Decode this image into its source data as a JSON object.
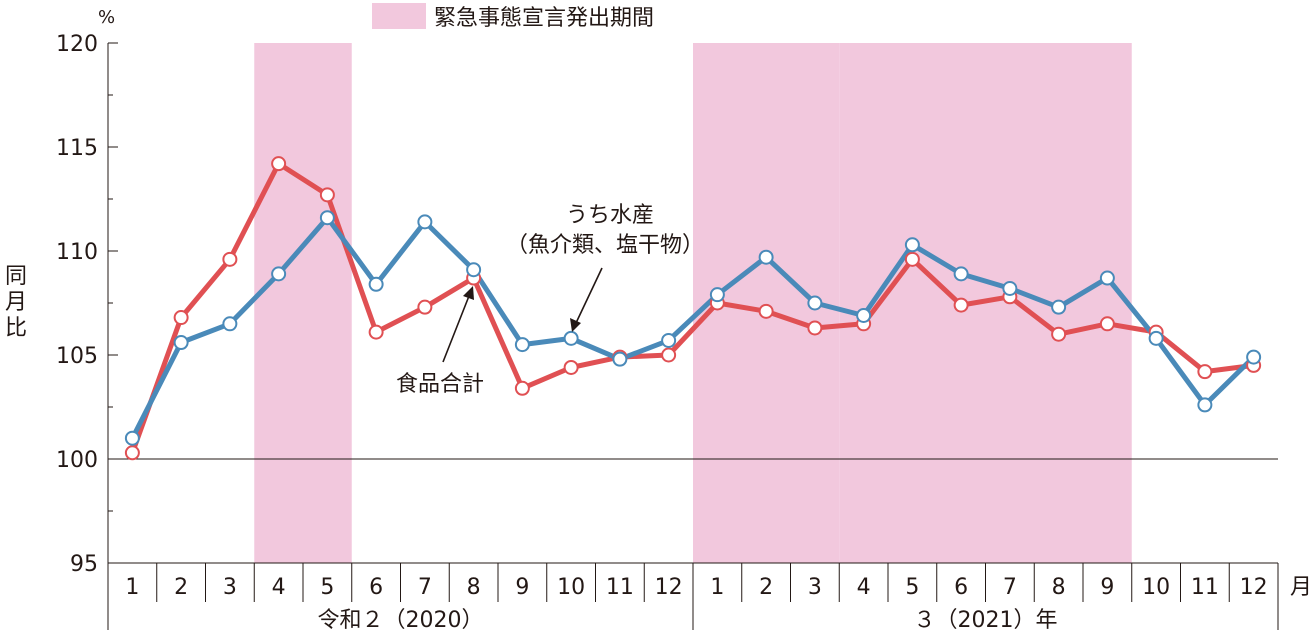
{
  "chart_data": {
    "type": "line",
    "legend": {
      "label": "緊急事態宣言発出期間",
      "color": "#f2c8dd",
      "placement": "top-center"
    },
    "shaded_periods_label": "緊急事態宣言発出期間",
    "shaded_periods": [
      {
        "from_index": 3,
        "to_index": 4
      },
      {
        "from_index": 12,
        "to_index": 14
      },
      {
        "from_index": 15,
        "to_index": 20
      }
    ],
    "y_unit": "%",
    "ylabel": "同月比",
    "ylim": [
      95,
      120
    ],
    "yticks": [
      "95",
      "100",
      "105",
      "110",
      "115",
      "120"
    ],
    "reference_line": 100,
    "categories": [
      "1",
      "2",
      "3",
      "4",
      "5",
      "6",
      "7",
      "8",
      "9",
      "10",
      "11",
      "12",
      "1",
      "2",
      "3",
      "4",
      "5",
      "6",
      "7",
      "8",
      "9",
      "10",
      "11",
      "12"
    ],
    "x_unit": "月",
    "year_groups": [
      {
        "label": "令和２（2020）",
        "from_index": 0,
        "to_index": 11
      },
      {
        "label": "３（2021）年",
        "from_index": 12,
        "to_index": 23
      }
    ],
    "series": [
      {
        "name": "食品合計",
        "color": "#e05053",
        "values": [
          100.3,
          106.8,
          109.6,
          114.2,
          112.7,
          106.1,
          107.3,
          108.7,
          103.4,
          104.4,
          104.9,
          105.0,
          107.5,
          107.1,
          106.3,
          106.5,
          109.6,
          107.4,
          107.8,
          106.0,
          106.5,
          106.1,
          104.2,
          104.5
        ]
      },
      {
        "name": "うち水産（魚介類、塩干物）",
        "name_lines": [
          "うち水産",
          "（魚介類、塩干物）"
        ],
        "color": "#4a8ab9",
        "values": [
          101.0,
          105.6,
          106.5,
          108.9,
          111.6,
          108.4,
          111.4,
          109.1,
          105.5,
          105.8,
          104.8,
          105.7,
          107.9,
          109.7,
          107.5,
          106.9,
          110.3,
          108.9,
          108.2,
          107.3,
          108.7,
          105.8,
          102.6,
          104.9
        ]
      }
    ]
  }
}
